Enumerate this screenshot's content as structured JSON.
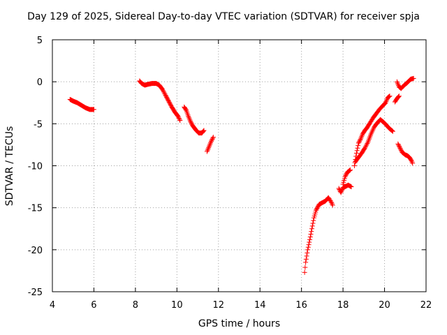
{
  "chart_data": {
    "type": "scatter",
    "title": "Day 129 of 2025, Sidereal Day-to-day VTEC variation (SDTVAR) for receiver spja",
    "xlabel": "GPS time / hours",
    "ylabel": "SDTVAR / TECUs",
    "xlim": [
      4,
      22
    ],
    "ylim": [
      -25,
      5
    ],
    "xticks": [
      "4",
      "6",
      "8",
      "10",
      "12",
      "14",
      "16",
      "18",
      "20",
      "22"
    ],
    "yticks": [
      "5",
      "0",
      "-5",
      "-10",
      "-15",
      "-20",
      "-25"
    ],
    "grid": true,
    "marker": "+",
    "color": "#ff0000",
    "segments": [
      [
        [
          4.85,
          -2.1
        ],
        [
          5.0,
          -2.3
        ],
        [
          5.2,
          -2.5
        ],
        [
          5.4,
          -2.8
        ],
        [
          5.6,
          -3.1
        ],
        [
          5.8,
          -3.3
        ],
        [
          6.0,
          -3.3
        ]
      ],
      [
        [
          8.2,
          0.1
        ],
        [
          8.3,
          -0.2
        ],
        [
          8.45,
          -0.4
        ],
        [
          8.6,
          -0.3
        ],
        [
          8.8,
          -0.2
        ],
        [
          9.0,
          -0.2
        ],
        [
          9.15,
          -0.4
        ],
        [
          9.3,
          -0.9
        ],
        [
          9.45,
          -1.6
        ],
        [
          9.6,
          -2.3
        ],
        [
          9.75,
          -3.0
        ],
        [
          9.9,
          -3.6
        ],
        [
          10.05,
          -4.1
        ],
        [
          10.15,
          -4.6
        ]
      ],
      [
        [
          10.35,
          -3.0
        ],
        [
          10.45,
          -3.4
        ],
        [
          10.55,
          -4.1
        ],
        [
          10.65,
          -4.7
        ],
        [
          10.75,
          -5.2
        ],
        [
          10.9,
          -5.7
        ],
        [
          11.05,
          -6.1
        ],
        [
          11.2,
          -6.1
        ],
        [
          11.3,
          -5.8
        ]
      ],
      [
        [
          11.45,
          -8.3
        ],
        [
          11.55,
          -7.7
        ],
        [
          11.65,
          -7.1
        ],
        [
          11.75,
          -6.6
        ]
      ],
      [
        [
          16.15,
          -22.7
        ],
        [
          16.2,
          -21.5
        ],
        [
          16.3,
          -20.0
        ],
        [
          16.4,
          -18.8
        ],
        [
          16.5,
          -17.5
        ],
        [
          16.6,
          -16.2
        ],
        [
          16.7,
          -15.3
        ],
        [
          16.85,
          -14.6
        ],
        [
          17.0,
          -14.4
        ],
        [
          17.15,
          -14.2
        ],
        [
          17.3,
          -13.8
        ],
        [
          17.45,
          -14.4
        ],
        [
          17.5,
          -14.7
        ]
      ],
      [
        [
          17.8,
          -12.7
        ],
        [
          17.9,
          -13.2
        ],
        [
          18.0,
          -12.6
        ],
        [
          18.1,
          -12.5
        ],
        [
          18.25,
          -12.3
        ],
        [
          18.4,
          -12.5
        ]
      ],
      [
        [
          18.0,
          -12.2
        ],
        [
          18.1,
          -11.3
        ],
        [
          18.2,
          -10.8
        ],
        [
          18.35,
          -10.5
        ]
      ],
      [
        [
          18.55,
          -10.0
        ],
        [
          18.65,
          -8.5
        ],
        [
          18.75,
          -7.3
        ],
        [
          18.85,
          -6.8
        ],
        [
          18.95,
          -6.2
        ],
        [
          19.05,
          -5.8
        ],
        [
          19.15,
          -5.5
        ],
        [
          19.3,
          -4.9
        ],
        [
          19.45,
          -4.3
        ],
        [
          19.6,
          -3.8
        ],
        [
          19.75,
          -3.3
        ],
        [
          19.9,
          -2.9
        ],
        [
          20.05,
          -2.5
        ],
        [
          20.15,
          -1.9
        ],
        [
          20.25,
          -1.7
        ]
      ],
      [
        [
          18.6,
          -9.5
        ],
        [
          18.75,
          -9.0
        ],
        [
          18.9,
          -8.5
        ],
        [
          19.05,
          -7.9
        ],
        [
          19.2,
          -7.2
        ],
        [
          19.35,
          -6.2
        ],
        [
          19.5,
          -5.4
        ],
        [
          19.65,
          -4.9
        ],
        [
          19.8,
          -4.5
        ],
        [
          19.95,
          -4.8
        ],
        [
          20.1,
          -5.2
        ],
        [
          20.25,
          -5.6
        ],
        [
          20.4,
          -5.9
        ]
      ],
      [
        [
          20.5,
          -2.4
        ],
        [
          20.6,
          -2.0
        ],
        [
          20.7,
          -1.7
        ]
      ],
      [
        [
          20.65,
          -7.4
        ],
        [
          20.75,
          -7.9
        ],
        [
          20.85,
          -8.4
        ],
        [
          21.0,
          -8.7
        ],
        [
          21.1,
          -8.8
        ],
        [
          21.2,
          -9.0
        ],
        [
          21.3,
          -9.4
        ],
        [
          21.35,
          -9.7
        ]
      ],
      [
        [
          20.6,
          0.0
        ],
        [
          20.7,
          -0.6
        ],
        [
          20.8,
          -0.8
        ],
        [
          20.95,
          -0.4
        ],
        [
          21.1,
          -0.1
        ],
        [
          21.25,
          0.3
        ],
        [
          21.4,
          0.4
        ]
      ]
    ]
  }
}
